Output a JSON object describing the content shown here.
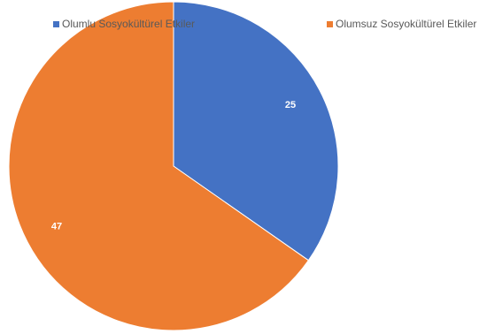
{
  "chart_data": {
    "type": "pie",
    "series": [
      {
        "name": "Olumlu Sosyokültürel Etkiler",
        "value": 25,
        "color": "#4472C4"
      },
      {
        "name": "Olumsuz Sosyokültürel Etkiler",
        "value": 47,
        "color": "#ED7D31"
      }
    ],
    "legend_position": "top",
    "start_angle": "top, clockwise"
  }
}
